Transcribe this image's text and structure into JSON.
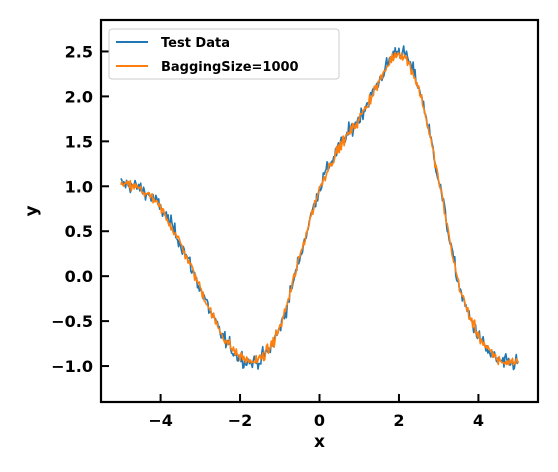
{
  "chart_data": {
    "type": "line",
    "title": "",
    "xlabel": "x",
    "ylabel": "y",
    "xlim": [
      -5.5,
      5.5
    ],
    "ylim": [
      -1.4,
      2.85
    ],
    "xticks": [
      -4,
      -2,
      0,
      2,
      4
    ],
    "yticks": [
      -1.0,
      -0.5,
      0.0,
      0.5,
      1.0,
      1.5,
      2.0,
      2.5
    ],
    "xtick_labels": [
      "−4",
      "−2",
      "0",
      "2",
      "4"
    ],
    "ytick_labels": [
      "−1.0",
      "−0.5",
      "0.0",
      "0.5",
      "1.0",
      "1.5",
      "2.0",
      "2.5"
    ],
    "grid": false,
    "legend_position": "upper-left",
    "x": [
      -5.0,
      -4.5,
      -4.0,
      -3.5,
      -3.0,
      -2.5,
      -2.0,
      -1.5,
      -1.0,
      -0.5,
      0.0,
      0.5,
      1.0,
      1.5,
      2.0,
      2.5,
      3.0,
      3.5,
      4.0,
      4.5,
      5.0
    ],
    "series": [
      {
        "name": "Test Data",
        "color": "#1f77b4",
        "values": [
          1.03,
          0.97,
          0.76,
          0.37,
          -0.14,
          -0.62,
          -0.9,
          -0.93,
          -0.58,
          0.2,
          0.98,
          1.44,
          1.76,
          2.17,
          2.51,
          2.1,
          1.08,
          -0.08,
          -0.66,
          -0.94,
          -0.96
        ]
      },
      {
        "name": "BaggingSize=1000",
        "color": "#ff7f0e",
        "values": [
          1.02,
          0.96,
          0.75,
          0.36,
          -0.13,
          -0.61,
          -0.89,
          -0.92,
          -0.57,
          0.21,
          0.97,
          1.43,
          1.75,
          2.16,
          2.48,
          2.08,
          1.07,
          -0.07,
          -0.65,
          -0.93,
          -0.95
        ]
      }
    ]
  }
}
